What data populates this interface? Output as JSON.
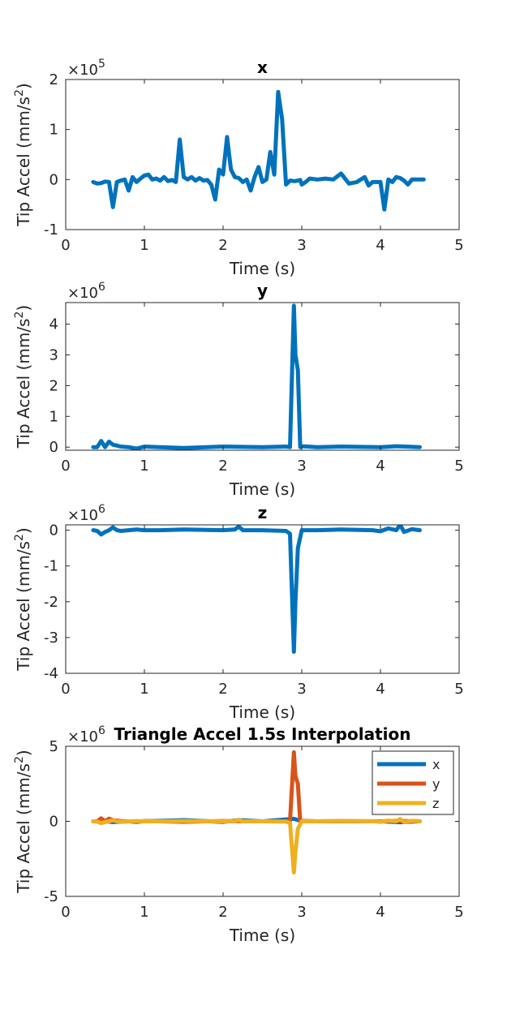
{
  "chart_data": [
    {
      "type": "line",
      "title": "x",
      "xlabel": "Time (s)",
      "ylabel": "Tip Accel (mm/s",
      "ylabel_sup": "2",
      "ylabel_end": ")",
      "xlim": [
        0,
        5
      ],
      "ylim": [
        -1,
        2
      ],
      "xticks": [
        "0",
        "1",
        "2",
        "3",
        "4",
        "5"
      ],
      "yticks": [
        "-1",
        "0",
        "1",
        "2"
      ],
      "scale_prefix": "×10",
      "scale_exp": "5",
      "color": "#0072BD",
      "series": [
        {
          "x": [
            0.35,
            0.4,
            0.45,
            0.5,
            0.55,
            0.6,
            0.65,
            0.7,
            0.75,
            0.8,
            0.85,
            0.9,
            0.95,
            1.0,
            1.05,
            1.1,
            1.15,
            1.2,
            1.25,
            1.3,
            1.35,
            1.4,
            1.45,
            1.5,
            1.55,
            1.6,
            1.65,
            1.7,
            1.75,
            1.8,
            1.85,
            1.9,
            1.95,
            2.0,
            2.05,
            2.1,
            2.15,
            2.2,
            2.25,
            2.3,
            2.35,
            2.4,
            2.45,
            2.5,
            2.55,
            2.6,
            2.65,
            2.7,
            2.75,
            2.8,
            2.85,
            2.9,
            2.92,
            2.95,
            2.98,
            3.0,
            3.05,
            3.1,
            3.2,
            3.3,
            3.4,
            3.5,
            3.6,
            3.7,
            3.8,
            3.85,
            3.9,
            3.95,
            4.0,
            4.05,
            4.1,
            4.15,
            4.2,
            4.25,
            4.3,
            4.35,
            4.4,
            4.45,
            4.5,
            4.55
          ],
          "y": [
            -0.05,
            -0.08,
            -0.07,
            -0.04,
            -0.05,
            -0.55,
            -0.05,
            -0.02,
            0.0,
            -0.22,
            0.05,
            -0.05,
            0.02,
            0.08,
            0.1,
            0.0,
            0.02,
            -0.02,
            0.05,
            -0.03,
            -0.01,
            -0.05,
            0.8,
            0.05,
            0.0,
            0.05,
            -0.02,
            0.03,
            -0.02,
            -0.01,
            -0.1,
            -0.4,
            0.2,
            0.1,
            0.85,
            0.2,
            0.05,
            0.03,
            -0.05,
            0.0,
            -0.22,
            0.05,
            0.25,
            -0.05,
            0.0,
            0.55,
            0.1,
            1.75,
            1.2,
            -0.1,
            -0.02,
            -0.03,
            -0.03,
            -0.02,
            -0.01,
            -0.1,
            -0.05,
            0.02,
            0.0,
            0.02,
            0.0,
            0.12,
            -0.08,
            -0.05,
            0.05,
            -0.12,
            -0.05,
            -0.05,
            -0.05,
            -0.6,
            0.0,
            -0.05,
            0.05,
            0.03,
            -0.02,
            -0.1,
            0.0,
            0.0,
            0.0,
            0.0
          ]
        }
      ]
    },
    {
      "type": "line",
      "title": "y",
      "xlabel": "Time (s)",
      "ylabel": "Tip Accel (mm/s",
      "ylabel_sup": "2",
      "ylabel_end": ")",
      "xlim": [
        0,
        5
      ],
      "ylim": [
        -0.1,
        4.7
      ],
      "xticks": [
        "0",
        "1",
        "2",
        "3",
        "4",
        "5"
      ],
      "yticks": [
        "0",
        "1",
        "2",
        "3",
        "4"
      ],
      "scale_prefix": "×10",
      "scale_exp": "6",
      "color": "#0072BD",
      "series": [
        {
          "x": [
            0.35,
            0.4,
            0.45,
            0.5,
            0.55,
            0.6,
            0.65,
            0.7,
            0.8,
            0.9,
            1.0,
            1.2,
            1.5,
            2.0,
            2.5,
            2.8,
            2.85,
            2.9,
            2.92,
            2.95,
            2.98,
            3.0,
            3.2,
            3.5,
            4.0,
            4.2,
            4.5
          ],
          "y": [
            0.0,
            0.0,
            0.2,
            0.0,
            0.18,
            0.08,
            0.05,
            0.02,
            0.0,
            -0.05,
            0.02,
            0.0,
            -0.03,
            0.02,
            0.0,
            0.02,
            0.0,
            4.6,
            3.0,
            2.5,
            0.0,
            0.03,
            0.0,
            0.02,
            0.0,
            0.03,
            0.0
          ]
        }
      ]
    },
    {
      "type": "line",
      "title": "z",
      "xlabel": "Time (s)",
      "ylabel": "Tip Accel (mm/s",
      "ylabel_sup": "2",
      "ylabel_end": ")",
      "xlim": [
        0,
        5
      ],
      "ylim": [
        -4,
        0.15
      ],
      "xticks": [
        "0",
        "1",
        "2",
        "3",
        "4",
        "5"
      ],
      "yticks": [
        "-4",
        "-3",
        "-2",
        "-1",
        "0"
      ],
      "scale_prefix": "×10",
      "scale_exp": "6",
      "color": "#0072BD",
      "series": [
        {
          "x": [
            0.35,
            0.4,
            0.45,
            0.5,
            0.55,
            0.6,
            0.65,
            0.7,
            0.8,
            0.9,
            1.0,
            1.2,
            1.5,
            2.0,
            2.15,
            2.2,
            2.25,
            2.5,
            2.8,
            2.85,
            2.9,
            2.92,
            2.95,
            3.0,
            3.2,
            3.5,
            3.9,
            4.0,
            4.1,
            4.2,
            4.25,
            4.3,
            4.4,
            4.5
          ],
          "y": [
            0.0,
            -0.02,
            -0.12,
            -0.05,
            0.0,
            0.08,
            0.0,
            -0.02,
            0.0,
            0.02,
            0.0,
            0.0,
            0.02,
            0.0,
            0.02,
            0.1,
            0.0,
            0.0,
            -0.02,
            -0.1,
            -3.4,
            -2.0,
            -0.5,
            0.0,
            0.0,
            0.02,
            0.0,
            -0.03,
            0.05,
            0.0,
            0.15,
            -0.05,
            0.03,
            0.0
          ]
        }
      ]
    },
    {
      "type": "line",
      "title": "Triangle Accel 1.5s Interpolation",
      "xlabel": "Time (s)",
      "ylabel": "Tip Accel (mm/s",
      "ylabel_sup": "2",
      "ylabel_end": ")",
      "xlim": [
        0,
        5
      ],
      "ylim": [
        -5,
        5
      ],
      "xticks": [
        "0",
        "1",
        "2",
        "3",
        "4",
        "5"
      ],
      "yticks": [
        "-5",
        "0",
        "5"
      ],
      "scale_prefix": "×10",
      "scale_exp": "6",
      "legend": "top-right",
      "series": [
        {
          "name": "x",
          "color": "#0072BD",
          "x": [
            0.35,
            0.5,
            0.6,
            0.8,
            1.0,
            1.5,
            2.0,
            2.2,
            2.5,
            2.9,
            3.0,
            3.5,
            4.0,
            4.25,
            4.5
          ],
          "y": [
            0.0,
            0.0,
            -0.05,
            0.0,
            0.0,
            0.08,
            -0.04,
            0.08,
            0.0,
            0.17,
            0.0,
            0.0,
            0.0,
            -0.06,
            0.0
          ]
        },
        {
          "name": "y",
          "color": "#D95319",
          "x": [
            0.35,
            0.4,
            0.45,
            0.5,
            0.55,
            0.6,
            0.65,
            0.7,
            0.8,
            0.9,
            1.0,
            1.2,
            1.5,
            2.0,
            2.5,
            2.8,
            2.85,
            2.9,
            2.92,
            2.95,
            2.98,
            3.0,
            3.2,
            3.5,
            4.0,
            4.2,
            4.5
          ],
          "y": [
            0.0,
            0.0,
            0.2,
            0.0,
            0.18,
            0.08,
            0.05,
            0.02,
            0.0,
            -0.05,
            0.02,
            0.0,
            -0.03,
            0.02,
            0.0,
            0.02,
            0.0,
            4.6,
            3.0,
            2.5,
            0.0,
            0.03,
            0.0,
            0.02,
            0.0,
            0.03,
            0.0
          ]
        },
        {
          "name": "z",
          "color": "#EDB120",
          "x": [
            0.35,
            0.4,
            0.45,
            0.5,
            0.55,
            0.6,
            0.65,
            0.7,
            0.8,
            0.9,
            1.0,
            1.2,
            1.5,
            2.0,
            2.15,
            2.2,
            2.25,
            2.5,
            2.8,
            2.85,
            2.9,
            2.92,
            2.95,
            3.0,
            3.2,
            3.5,
            3.9,
            4.0,
            4.1,
            4.2,
            4.25,
            4.3,
            4.4,
            4.5
          ],
          "y": [
            0.0,
            -0.02,
            -0.12,
            -0.05,
            0.0,
            0.08,
            0.0,
            -0.02,
            0.0,
            0.02,
            0.0,
            0.0,
            0.02,
            0.0,
            0.02,
            0.1,
            0.0,
            0.0,
            -0.02,
            -0.1,
            -3.4,
            -2.0,
            -0.5,
            0.0,
            0.0,
            0.02,
            0.0,
            -0.03,
            0.05,
            0.0,
            0.15,
            -0.05,
            0.03,
            0.0
          ]
        }
      ]
    }
  ]
}
